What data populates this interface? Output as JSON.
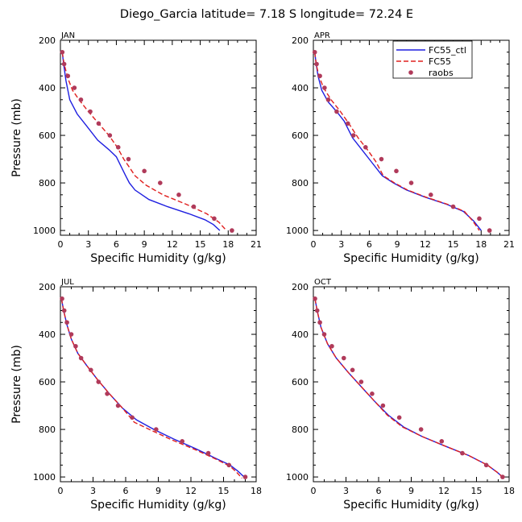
{
  "figure": {
    "title": "Diego_Garcia   latitude= 7.18 S longitude= 72.24 E",
    "legend": {
      "placement": "top-right of APR panel",
      "entries": [
        {
          "name": "FC55_ctl",
          "color": "#1f1fe0",
          "style": "solid"
        },
        {
          "name": "FC55",
          "color": "#e0201f",
          "style": "dashed"
        },
        {
          "name": "raobs",
          "color": "#b03a5a",
          "style": "dots"
        }
      ]
    }
  },
  "chart_data": [
    {
      "type": "line",
      "panel": "JAN",
      "title": "JAN",
      "xlabel": "Specific Humidity (g/kg)",
      "ylabel": "Pressure (mb)",
      "xlim": [
        0,
        21
      ],
      "xticks": [
        0,
        3,
        6,
        9,
        12,
        15,
        18,
        21
      ],
      "ylim": [
        1020,
        200
      ],
      "yticks": [
        200,
        400,
        600,
        800,
        1000
      ],
      "y_inverted": true,
      "grid": false,
      "series": [
        {
          "name": "FC55_ctl",
          "color": "#1f1fe0",
          "style": "solid",
          "x": [
            0.2,
            0.35,
            0.6,
            1.0,
            1.8,
            2.8,
            4.0,
            5.2,
            6.0,
            6.5,
            7.0,
            7.4,
            8.0,
            9.5,
            11.5,
            13.8,
            15.5,
            16.4,
            17.1
          ],
          "y": [
            250,
            300,
            370,
            450,
            510,
            560,
            620,
            660,
            690,
            730,
            770,
            800,
            830,
            870,
            900,
            930,
            955,
            975,
            1000
          ]
        },
        {
          "name": "FC55",
          "color": "#e0201f",
          "style": "dashed",
          "x": [
            0.2,
            0.4,
            0.8,
            1.3,
            2.0,
            3.0,
            4.1,
            5.2,
            6.1,
            6.8,
            7.5,
            8.0,
            9.2,
            11.0,
            13.5,
            15.7,
            17.0,
            17.8
          ],
          "y": [
            250,
            300,
            360,
            410,
            450,
            500,
            550,
            600,
            650,
            700,
            740,
            770,
            810,
            850,
            890,
            930,
            965,
            1000
          ]
        },
        {
          "name": "raobs",
          "color": "#b03a5a",
          "style": "dots",
          "x": [
            0.2,
            0.4,
            0.8,
            1.5,
            2.2,
            3.2,
            4.1,
            5.3,
            6.2,
            7.3,
            9.0,
            10.7,
            12.7,
            14.3,
            16.5,
            18.4
          ],
          "y": [
            250,
            300,
            350,
            400,
            450,
            500,
            550,
            600,
            650,
            700,
            750,
            800,
            850,
            900,
            950,
            1000
          ]
        }
      ]
    },
    {
      "type": "line",
      "panel": "APR",
      "title": "APR",
      "xlabel": "Specific Humidity (g/kg)",
      "ylabel": "",
      "xlim": [
        0,
        21
      ],
      "xticks": [
        0,
        3,
        6,
        9,
        12,
        15,
        18,
        21
      ],
      "ylim": [
        1020,
        200
      ],
      "yticks": [
        200,
        400,
        600,
        800,
        1000
      ],
      "y_inverted": true,
      "grid": false,
      "series": [
        {
          "name": "FC55_ctl",
          "color": "#1f1fe0",
          "style": "solid",
          "x": [
            0.15,
            0.3,
            0.5,
            0.9,
            1.6,
            2.5,
            3.3,
            4.2,
            5.2,
            6.2,
            7.4,
            8.6,
            10.0,
            12.0,
            14.3,
            16.1,
            17.2,
            18.0
          ],
          "y": [
            250,
            300,
            350,
            410,
            460,
            500,
            540,
            610,
            660,
            710,
            770,
            800,
            830,
            860,
            890,
            920,
            960,
            1000
          ]
        },
        {
          "name": "FC55",
          "color": "#e0201f",
          "style": "dashed",
          "x": [
            0.15,
            0.3,
            0.6,
            1.1,
            1.9,
            2.9,
            3.8,
            4.8,
            5.8,
            6.7,
            7.5,
            8.7,
            10.1,
            12.1,
            14.4,
            16.2,
            17.1,
            17.8
          ],
          "y": [
            250,
            300,
            350,
            400,
            450,
            500,
            550,
            610,
            660,
            710,
            770,
            800,
            830,
            860,
            890,
            920,
            960,
            1000
          ]
        },
        {
          "name": "raobs",
          "color": "#b03a5a",
          "style": "dots",
          "x": [
            0.15,
            0.35,
            0.7,
            1.2,
            1.6,
            2.5,
            3.7,
            4.3,
            5.6,
            7.3,
            8.9,
            10.5,
            12.6,
            15.0,
            17.8,
            18.9
          ],
          "y": [
            250,
            300,
            350,
            400,
            450,
            500,
            550,
            600,
            650,
            700,
            750,
            800,
            850,
            900,
            950,
            1000
          ]
        }
      ]
    },
    {
      "type": "line",
      "panel": "JUL",
      "title": "JUL",
      "xlabel": "Specific Humidity (g/kg)",
      "ylabel": "Pressure (mb)",
      "xlim": [
        0,
        18
      ],
      "xticks": [
        0,
        3,
        6,
        9,
        12,
        15,
        18
      ],
      "ylim": [
        1020,
        200
      ],
      "yticks": [
        200,
        400,
        600,
        800,
        1000
      ],
      "y_inverted": true,
      "grid": false,
      "series": [
        {
          "name": "FC55_ctl",
          "color": "#1f1fe0",
          "style": "solid",
          "x": [
            0.1,
            0.3,
            0.6,
            1.0,
            1.6,
            2.4,
            3.4,
            4.5,
            5.7,
            7.0,
            8.6,
            10.4,
            12.4,
            14.2,
            15.6,
            16.3,
            16.9
          ],
          "y": [
            250,
            300,
            360,
            420,
            480,
            530,
            590,
            650,
            710,
            760,
            800,
            840,
            880,
            920,
            950,
            975,
            1000
          ]
        },
        {
          "name": "FC55",
          "color": "#e0201f",
          "style": "dashed",
          "x": [
            0.1,
            0.3,
            0.6,
            1.0,
            1.6,
            2.4,
            3.4,
            4.5,
            5.7,
            6.8,
            8.4,
            10.3,
            12.4,
            14.3,
            15.6,
            16.2,
            16.7
          ],
          "y": [
            250,
            300,
            360,
            420,
            480,
            530,
            590,
            650,
            710,
            770,
            805,
            845,
            885,
            925,
            955,
            980,
            1005
          ]
        },
        {
          "name": "raobs",
          "color": "#b03a5a",
          "style": "dots",
          "x": [
            0.15,
            0.35,
            0.6,
            1.0,
            1.4,
            1.9,
            2.8,
            3.5,
            4.3,
            5.3,
            6.6,
            8.8,
            11.2,
            13.6,
            15.5,
            17.0
          ],
          "y": [
            250,
            300,
            350,
            400,
            450,
            500,
            550,
            600,
            650,
            700,
            750,
            800,
            850,
            900,
            950,
            1000
          ]
        }
      ]
    },
    {
      "type": "line",
      "panel": "OCT",
      "title": "OCT",
      "xlabel": "Specific Humidity (g/kg)",
      "ylabel": "",
      "xlim": [
        0,
        18
      ],
      "xticks": [
        0,
        3,
        6,
        9,
        12,
        15,
        18
      ],
      "ylim": [
        1020,
        200
      ],
      "yticks": [
        200,
        400,
        600,
        800,
        1000
      ],
      "y_inverted": true,
      "grid": false,
      "series": [
        {
          "name": "FC55_ctl",
          "color": "#1f1fe0",
          "style": "solid",
          "x": [
            0.15,
            0.35,
            0.7,
            1.3,
            2.1,
            3.2,
            4.4,
            5.6,
            6.9,
            8.3,
            10.0,
            12.1,
            14.3,
            16.0,
            16.9,
            17.4
          ],
          "y": [
            250,
            300,
            370,
            440,
            500,
            560,
            620,
            680,
            740,
            790,
            830,
            870,
            910,
            950,
            980,
            1000
          ]
        },
        {
          "name": "FC55",
          "color": "#e0201f",
          "style": "dashed",
          "x": [
            0.15,
            0.35,
            0.7,
            1.3,
            2.1,
            3.2,
            4.4,
            5.6,
            6.8,
            8.2,
            10.0,
            12.1,
            14.3,
            16.0,
            16.9,
            17.4
          ],
          "y": [
            250,
            300,
            370,
            440,
            500,
            560,
            620,
            680,
            740,
            790,
            830,
            870,
            910,
            950,
            980,
            1000
          ]
        },
        {
          "name": "raobs",
          "color": "#b03a5a",
          "style": "dots",
          "x": [
            0.15,
            0.35,
            0.6,
            1.0,
            1.7,
            2.8,
            3.6,
            4.4,
            5.4,
            6.4,
            7.9,
            9.9,
            11.8,
            13.7,
            15.9,
            17.4
          ],
          "y": [
            250,
            300,
            350,
            400,
            450,
            500,
            550,
            600,
            650,
            700,
            750,
            800,
            850,
            900,
            950,
            1000
          ]
        }
      ]
    }
  ]
}
